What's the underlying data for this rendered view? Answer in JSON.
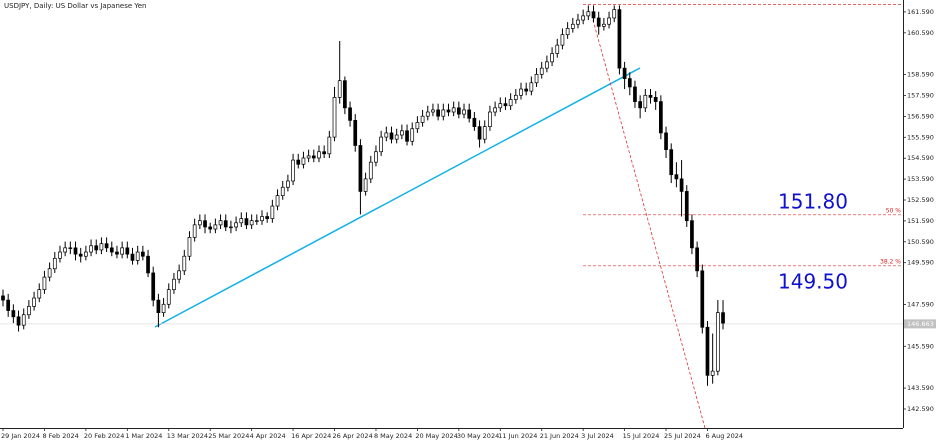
{
  "chart_data": {
    "type": "candlestick",
    "title": "USDJPY, Daily:  US Dollar vs Japanese Yen",
    "categories": [
      "29 Jan 2024",
      null,
      null,
      null,
      null,
      null,
      null,
      null,
      "8 Feb 2024",
      null,
      null,
      null,
      null,
      null,
      null,
      null,
      "20 Feb 2024",
      null,
      null,
      null,
      null,
      null,
      null,
      null,
      "1 Mar 2024",
      null,
      null,
      null,
      null,
      null,
      null,
      null,
      "13 Mar 2024",
      null,
      null,
      null,
      null,
      null,
      null,
      null,
      "25 Mar 2024",
      null,
      null,
      null,
      null,
      null,
      null,
      null,
      "4 Apr 2024",
      null,
      null,
      null,
      null,
      null,
      null,
      null,
      "16 Apr 2024",
      null,
      null,
      null,
      null,
      null,
      null,
      null,
      "26 Apr 2024",
      null,
      null,
      null,
      null,
      null,
      null,
      null,
      "8 May 2024",
      null,
      null,
      null,
      null,
      null,
      null,
      null,
      "20 May 2024",
      null,
      null,
      null,
      null,
      null,
      null,
      null,
      "30 May 2024",
      null,
      null,
      null,
      null,
      null,
      null,
      null,
      "11 Jun 2024",
      null,
      null,
      null,
      null,
      null,
      null,
      null,
      "21 Jun 2024",
      null,
      null,
      null,
      null,
      null,
      null,
      null,
      "3 Jul 2024",
      null,
      null,
      null,
      null,
      null,
      null,
      null,
      "15 Jul 2024",
      null,
      null,
      null,
      null,
      null,
      null,
      null,
      "25 Jul 2024",
      null,
      null,
      null,
      null,
      null,
      null,
      null,
      "6 Aug 2024",
      null,
      null,
      null
    ],
    "open": [
      148.0,
      147.8,
      147.3,
      147.0,
      146.6,
      147.1,
      147.5,
      147.9,
      148.3,
      148.9,
      149.3,
      149.8,
      150.1,
      150.3,
      150.3,
      150.0,
      149.9,
      150.1,
      150.4,
      150.2,
      150.5,
      150.3,
      150.1,
      150.0,
      150.3,
      150.0,
      149.7,
      150.1,
      149.9,
      149.1,
      147.8,
      147.2,
      147.6,
      148.3,
      148.8,
      149.2,
      149.9,
      150.8,
      151.4,
      151.6,
      151.3,
      151.2,
      151.4,
      151.6,
      151.3,
      151.3,
      151.5,
      151.7,
      151.4,
      151.6,
      151.6,
      151.8,
      151.7,
      152.3,
      152.8,
      153.2,
      153.5,
      154.5,
      154.3,
      154.6,
      154.7,
      154.6,
      154.9,
      154.8,
      155.6,
      157.5,
      158.3,
      157.0,
      156.4,
      155.2,
      153.0,
      153.6,
      154.4,
      154.9,
      155.6,
      155.8,
      155.5,
      155.7,
      155.9,
      155.4,
      156.0,
      156.3,
      156.6,
      156.8,
      156.9,
      156.6,
      156.9,
      156.8,
      157.0,
      156.7,
      156.9,
      156.5,
      156.1,
      155.5,
      156.1,
      156.8,
      157.0,
      157.2,
      157.1,
      157.4,
      157.6,
      157.9,
      157.8,
      158.2,
      158.6,
      158.9,
      159.2,
      159.6,
      160.0,
      160.5,
      160.8,
      161.0,
      161.2,
      161.4,
      161.6,
      161.3,
      160.9,
      161.0,
      161.3,
      161.7,
      158.9,
      158.4,
      158.0,
      157.3,
      157.0,
      157.6,
      157.5,
      157.3,
      155.8,
      155.0,
      153.8,
      153.6,
      153.0,
      151.6,
      150.3,
      149.2,
      146.5,
      144.2,
      144.4,
      147.2
    ],
    "high": [
      148.3,
      148.1,
      147.6,
      147.3,
      147.4,
      147.8,
      148.2,
      148.6,
      149.2,
      149.6,
      150.1,
      150.4,
      150.6,
      150.6,
      150.6,
      150.3,
      150.4,
      150.7,
      150.7,
      150.8,
      150.8,
      150.6,
      150.4,
      150.6,
      150.6,
      150.3,
      150.4,
      150.4,
      150.2,
      149.4,
      148.1,
      147.9,
      148.6,
      149.1,
      149.5,
      150.2,
      151.1,
      151.7,
      151.9,
      151.9,
      151.5,
      151.7,
      151.9,
      151.9,
      151.6,
      151.8,
      152.0,
      152.0,
      151.9,
      151.9,
      152.1,
      152.0,
      152.6,
      153.1,
      153.5,
      153.8,
      154.8,
      154.8,
      154.9,
      155.0,
      155.0,
      155.2,
      155.2,
      155.9,
      158.0,
      160.2,
      158.5,
      157.3,
      156.7,
      155.5,
      153.9,
      154.7,
      155.2,
      155.9,
      156.1,
      156.1,
      156.0,
      156.2,
      156.2,
      156.3,
      156.6,
      156.9,
      157.1,
      157.2,
      157.2,
      157.2,
      157.2,
      157.3,
      157.3,
      157.2,
      157.2,
      156.8,
      156.4,
      156.4,
      157.1,
      157.3,
      157.5,
      157.5,
      157.7,
      157.9,
      158.2,
      158.2,
      158.5,
      158.9,
      159.2,
      159.5,
      159.9,
      160.3,
      160.8,
      161.1,
      161.3,
      161.5,
      161.7,
      161.9,
      161.9,
      161.6,
      161.3,
      161.6,
      161.9,
      161.9,
      159.2,
      158.7,
      158.3,
      157.6,
      157.9,
      157.9,
      157.8,
      157.6,
      156.1,
      155.3,
      154.4,
      154.5,
      153.3,
      151.9,
      150.6,
      149.5,
      146.8,
      146.2,
      147.8,
      147.8
    ],
    "low": [
      147.5,
      147.0,
      146.7,
      146.3,
      146.4,
      146.9,
      147.3,
      147.7,
      148.1,
      148.7,
      149.1,
      149.6,
      149.9,
      150.0,
      149.7,
      149.6,
      149.7,
      149.9,
      150.0,
      150.0,
      150.1,
      149.9,
      149.8,
      149.8,
      149.8,
      149.5,
      149.5,
      149.7,
      148.9,
      147.5,
      146.5,
      147.0,
      147.4,
      148.1,
      148.6,
      149.0,
      149.7,
      150.6,
      151.2,
      151.0,
      151.0,
      151.0,
      151.2,
      151.1,
      151.0,
      151.1,
      151.3,
      151.2,
      151.2,
      151.4,
      151.4,
      151.5,
      151.5,
      152.1,
      152.6,
      153.0,
      153.3,
      154.1,
      154.1,
      154.4,
      154.4,
      154.4,
      154.6,
      154.6,
      155.4,
      157.2,
      156.7,
      156.1,
      154.9,
      151.9,
      152.8,
      153.4,
      154.2,
      154.7,
      155.4,
      155.3,
      155.3,
      155.5,
      155.2,
      155.2,
      155.8,
      156.1,
      156.4,
      156.6,
      156.4,
      156.4,
      156.6,
      156.6,
      156.5,
      156.5,
      156.3,
      155.9,
      155.1,
      155.3,
      155.9,
      156.6,
      156.8,
      156.9,
      156.9,
      157.2,
      157.4,
      157.6,
      157.6,
      158.0,
      158.4,
      158.7,
      159.0,
      159.4,
      159.8,
      160.3,
      160.6,
      160.8,
      161.0,
      161.2,
      161.1,
      160.5,
      160.7,
      160.8,
      161.1,
      158.6,
      157.9,
      157.6,
      157.0,
      156.5,
      156.8,
      157.2,
      156.9,
      155.5,
      154.6,
      153.4,
      153.2,
      151.8,
      151.3,
      150.0,
      148.9,
      146.2,
      143.7,
      143.8,
      144.2,
      146.4
    ],
    "close": [
      147.8,
      147.3,
      147.0,
      146.6,
      147.1,
      147.5,
      147.9,
      148.3,
      148.9,
      149.3,
      149.8,
      150.1,
      150.3,
      150.3,
      150.0,
      149.9,
      150.1,
      150.4,
      150.2,
      150.5,
      150.3,
      150.1,
      150.0,
      150.3,
      150.0,
      149.7,
      150.1,
      149.9,
      149.1,
      147.8,
      147.2,
      147.6,
      148.3,
      148.8,
      149.2,
      149.9,
      150.8,
      151.4,
      151.6,
      151.3,
      151.2,
      151.4,
      151.6,
      151.3,
      151.3,
      151.5,
      151.7,
      151.4,
      151.6,
      151.6,
      151.8,
      151.7,
      152.3,
      152.8,
      153.2,
      153.5,
      154.5,
      154.3,
      154.6,
      154.7,
      154.6,
      154.9,
      154.8,
      155.6,
      157.5,
      158.3,
      157.0,
      156.4,
      155.2,
      153.0,
      153.6,
      154.4,
      154.9,
      155.6,
      155.8,
      155.5,
      155.7,
      155.9,
      155.4,
      156.0,
      156.3,
      156.6,
      156.8,
      156.9,
      156.6,
      156.9,
      156.8,
      157.0,
      156.7,
      156.9,
      156.5,
      156.1,
      155.5,
      156.1,
      156.8,
      157.0,
      157.2,
      157.1,
      157.4,
      157.6,
      157.9,
      157.8,
      158.2,
      158.6,
      158.9,
      159.2,
      159.6,
      160.0,
      160.5,
      160.8,
      161.0,
      161.2,
      161.4,
      161.6,
      161.3,
      160.9,
      161.0,
      161.3,
      161.7,
      158.9,
      158.4,
      158.0,
      157.3,
      157.0,
      157.6,
      157.5,
      157.3,
      155.8,
      155.0,
      153.8,
      153.6,
      153.0,
      151.6,
      150.3,
      149.2,
      146.5,
      144.2,
      144.4,
      147.2,
      146.7
    ],
    "up_color": "#ffffff",
    "down_color": "#000000",
    "ylim": [
      141.68,
      162.16
    ],
    "yticks": [
      {
        "value": 161.59,
        "label": "161.590"
      },
      {
        "value": 160.59,
        "label": "160.590"
      },
      {
        "value": 158.59,
        "label": "158.590"
      },
      {
        "value": 157.59,
        "label": "157.590"
      },
      {
        "value": 156.59,
        "label": "156.590"
      },
      {
        "value": 155.59,
        "label": "155.590"
      },
      {
        "value": 154.59,
        "label": "154.590"
      },
      {
        "value": 153.59,
        "label": "153.590"
      },
      {
        "value": 152.59,
        "label": "152.590"
      },
      {
        "value": 151.59,
        "label": "151.590"
      },
      {
        "value": 150.59,
        "label": "150.590"
      },
      {
        "value": 149.59,
        "label": "149.590"
      },
      {
        "value": 147.59,
        "label": "147.590"
      },
      {
        "value": 146.59,
        "label": "146.590"
      },
      {
        "value": 145.59,
        "label": "145.590"
      },
      {
        "value": 143.59,
        "label": "143.590"
      },
      {
        "value": 142.59,
        "label": "142.590"
      }
    ],
    "last_price": {
      "value": 146.663,
      "label": "146.663"
    },
    "fib_levels": [
      {
        "value": 161.95
      },
      {
        "value": 151.88,
        "label": "50 %"
      },
      {
        "value": 149.44,
        "label": "38.2 %"
      }
    ],
    "fib_color": "#e03030",
    "annotations": [
      "151.80",
      "149.50"
    ]
  }
}
